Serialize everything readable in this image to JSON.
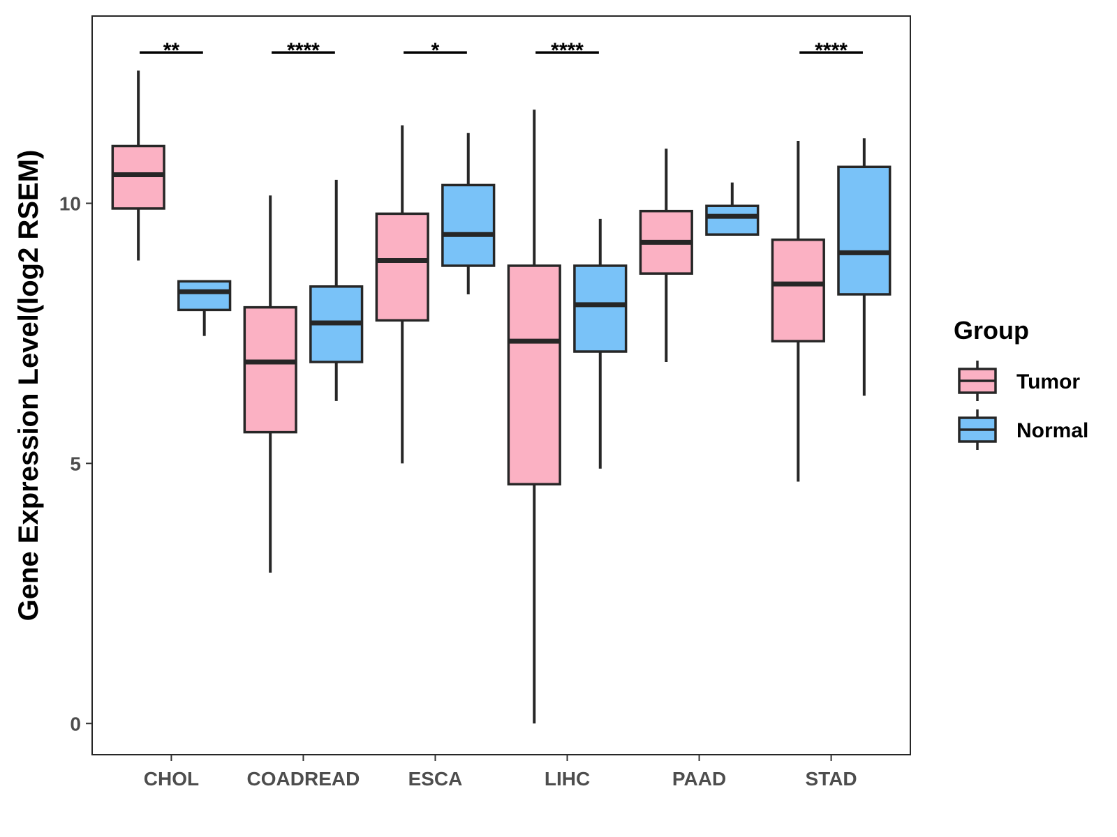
{
  "chart_data": {
    "type": "boxplot",
    "title": "",
    "xlabel": "",
    "ylabel": "Gene Expression Level(log2 RSEM)",
    "ylim": [
      -0.6,
      13.6
    ],
    "yticks": [
      0,
      5,
      10
    ],
    "grid": false,
    "categories": [
      "CHOL",
      "COADREAD",
      "ESCA",
      "LIHC",
      "PAAD",
      "STAD"
    ],
    "colors": {
      "Tumor": "#fbb1c3",
      "Normal": "#79c2f8",
      "outline": "#262626"
    },
    "legend": {
      "title": "Group",
      "position": "right",
      "entries": [
        "Tumor",
        "Normal"
      ]
    },
    "series": [
      {
        "name": "Tumor",
        "boxes": [
          {
            "whisker_low": 8.9,
            "q1": 9.9,
            "median": 10.55,
            "q3": 11.1,
            "whisker_high": 12.55
          },
          {
            "whisker_low": 2.9,
            "q1": 5.6,
            "median": 6.95,
            "q3": 8.0,
            "whisker_high": 10.15
          },
          {
            "whisker_low": 5.0,
            "q1": 7.75,
            "median": 8.9,
            "q3": 9.8,
            "whisker_high": 11.5
          },
          {
            "whisker_low": 0.0,
            "q1": 4.6,
            "median": 7.35,
            "q3": 8.8,
            "whisker_high": 11.8
          },
          {
            "whisker_low": 6.95,
            "q1": 8.65,
            "median": 9.25,
            "q3": 9.85,
            "whisker_high": 11.05
          },
          {
            "whisker_low": 4.65,
            "q1": 7.35,
            "median": 8.45,
            "q3": 9.3,
            "whisker_high": 11.2
          }
        ]
      },
      {
        "name": "Normal",
        "boxes": [
          {
            "whisker_low": 7.45,
            "q1": 7.95,
            "median": 8.3,
            "q3": 8.5,
            "whisker_high": 8.5
          },
          {
            "whisker_low": 6.2,
            "q1": 6.95,
            "median": 7.7,
            "q3": 8.4,
            "whisker_high": 10.45
          },
          {
            "whisker_low": 8.25,
            "q1": 8.8,
            "median": 9.4,
            "q3": 10.35,
            "whisker_high": 11.35
          },
          {
            "whisker_low": 4.9,
            "q1": 7.15,
            "median": 8.05,
            "q3": 8.8,
            "whisker_high": 9.7
          },
          {
            "whisker_low": 9.4,
            "q1": 9.4,
            "median": 9.75,
            "q3": 9.95,
            "whisker_high": 10.4
          },
          {
            "whisker_low": 6.3,
            "q1": 8.25,
            "median": 9.05,
            "q3": 10.7,
            "whisker_high": 11.25
          }
        ]
      }
    ],
    "significance": [
      {
        "category": "CHOL",
        "label": "**",
        "y": 12.9
      },
      {
        "category": "COADREAD",
        "label": "****",
        "y": 12.9
      },
      {
        "category": "ESCA",
        "label": "*",
        "y": 12.9
      },
      {
        "category": "LIHC",
        "label": "****",
        "y": 12.9
      },
      {
        "category": "STAD",
        "label": "****",
        "y": 12.9
      }
    ]
  }
}
